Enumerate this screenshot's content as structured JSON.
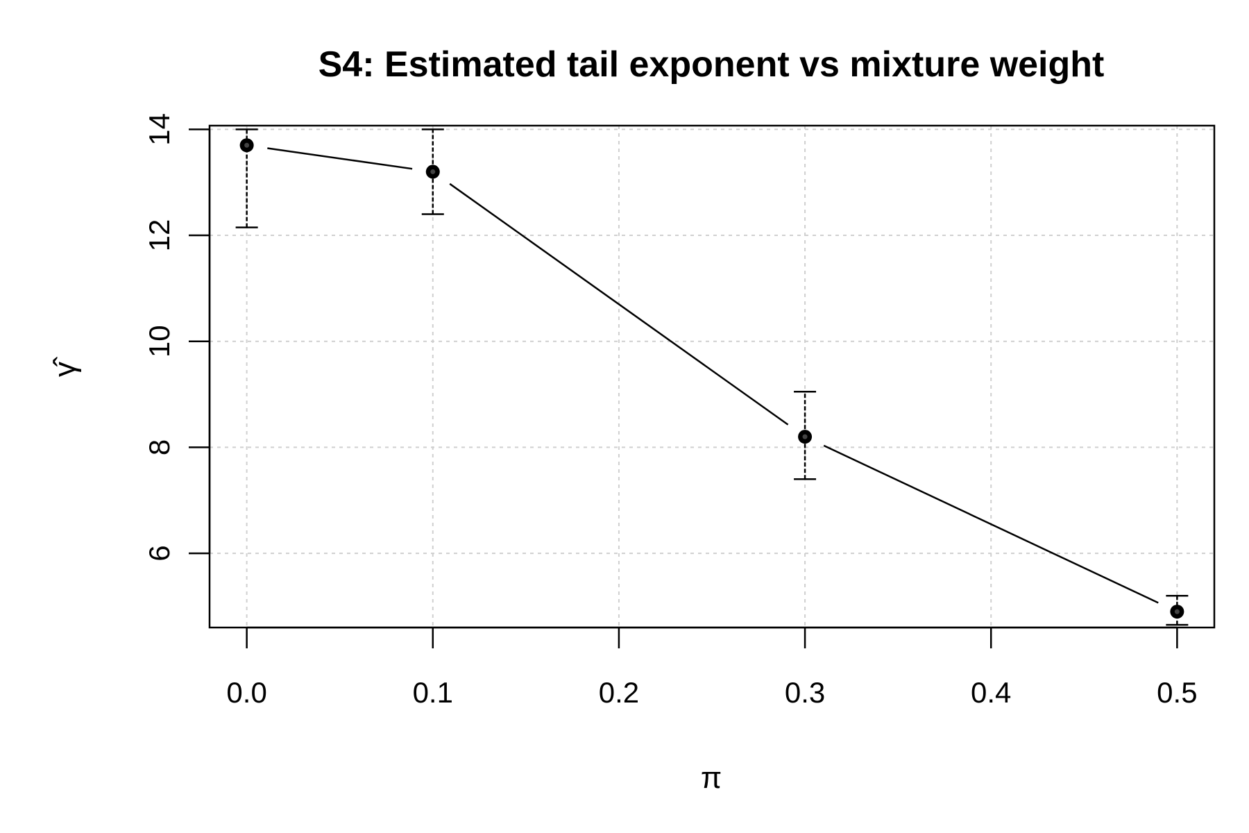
{
  "chart_data": {
    "type": "line",
    "title": "S4: Estimated tail exponent vs mixture weight",
    "xlabel": "π",
    "ylabel": "γ̂",
    "x": [
      0.0,
      0.1,
      0.3,
      0.5
    ],
    "series": [
      {
        "values": [
          13.7,
          13.2,
          8.2,
          4.9
        ],
        "lower": [
          12.15,
          12.4,
          7.4,
          4.65
        ],
        "upper": [
          14.0,
          14.0,
          9.05,
          5.2
        ]
      }
    ],
    "xlim": [
      -0.02,
      0.52
    ],
    "ylim": [
      4.6,
      14.07
    ],
    "xticks": [
      "0.0",
      "0.1",
      "0.2",
      "0.3",
      "0.4",
      "0.5"
    ],
    "yticks": [
      "6",
      "8",
      "10",
      "12",
      "14"
    ],
    "grid": true,
    "legend": "none"
  }
}
